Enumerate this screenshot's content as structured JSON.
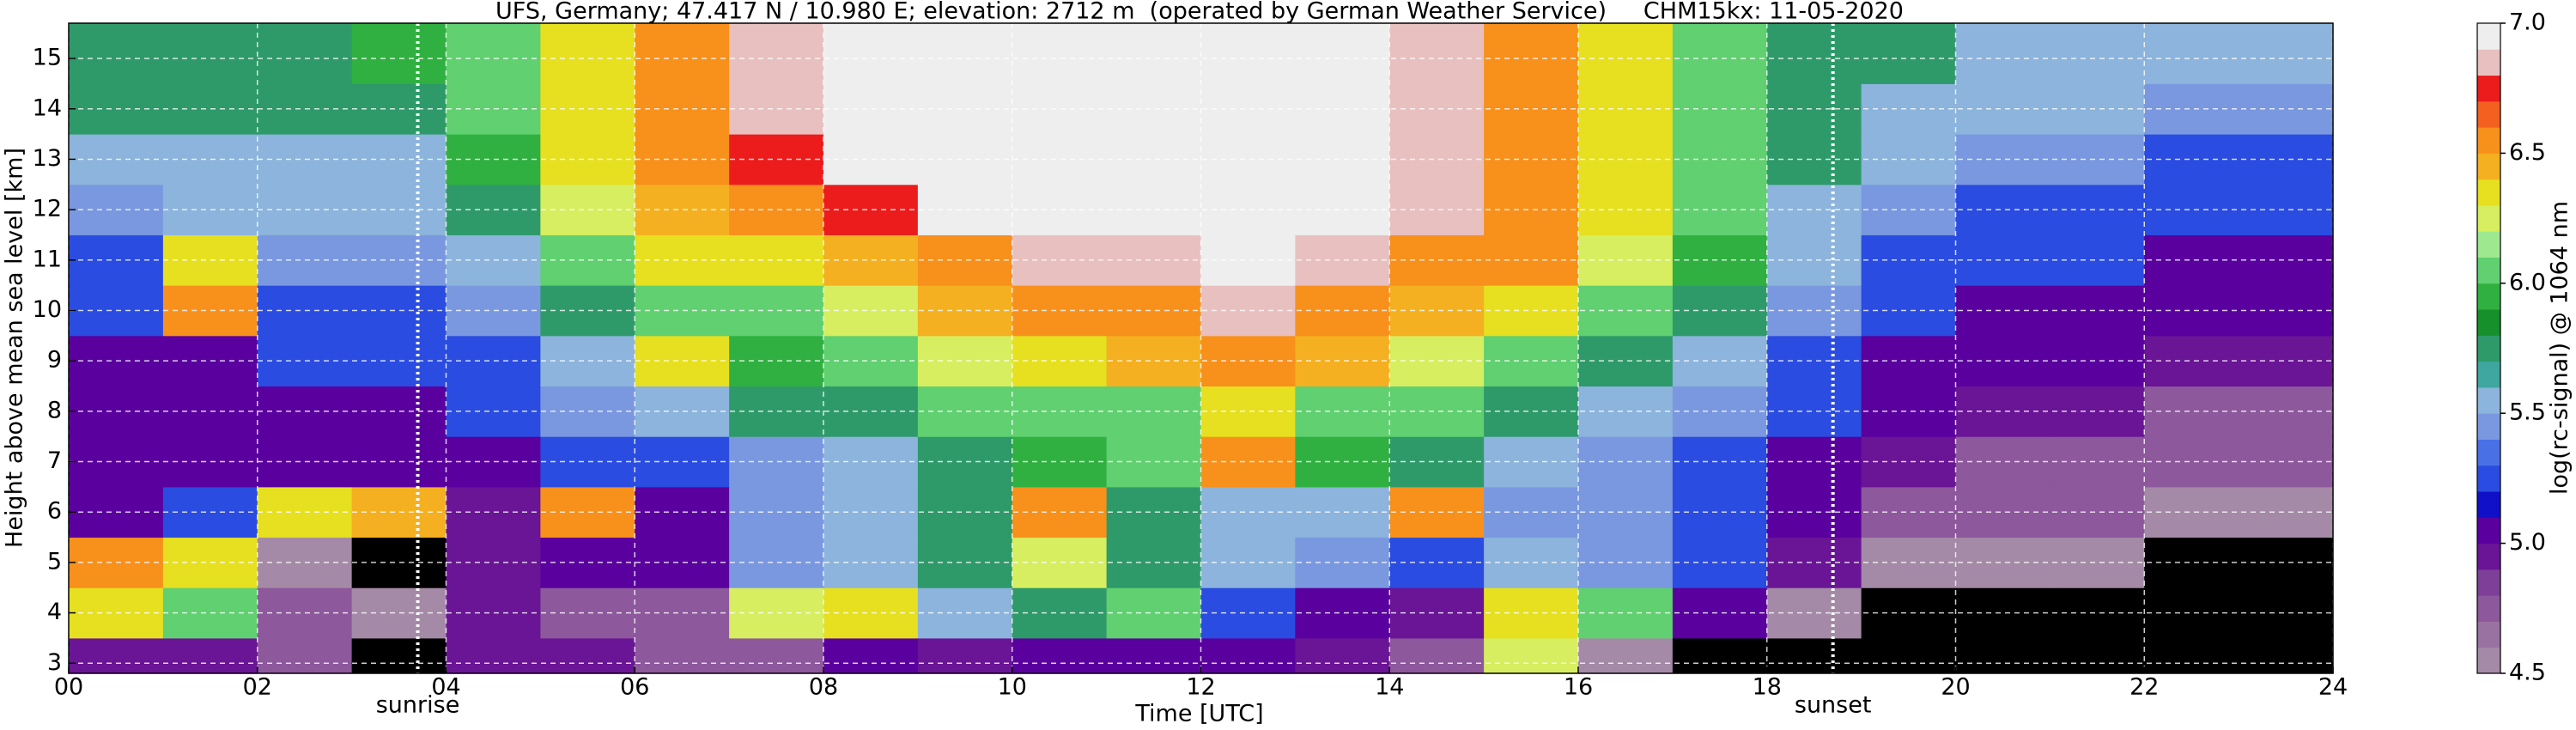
{
  "chart_data": {
    "type": "heatmap",
    "title": "UFS, Germany; 47.417 N / 10.980 E; elevation: 2712 m  (operated by German Weather Service)     CHM15kx: 11-05-2020",
    "x_label": "Time [UTC]",
    "y_label": "Height above mean sea level [km]",
    "colorbar_label": "log(rc-signal) @ 1064 nm",
    "xlim": [
      0,
      24
    ],
    "ylim": [
      2.8,
      15.7
    ],
    "xticks": [
      {
        "value": 0,
        "label": "00"
      },
      {
        "value": 2,
        "label": "02"
      },
      {
        "value": 4,
        "label": "04"
      },
      {
        "value": 6,
        "label": "06"
      },
      {
        "value": 8,
        "label": "08"
      },
      10,
      12,
      14,
      16,
      18,
      20,
      22,
      24
    ],
    "yticks": [
      3,
      4,
      5,
      6,
      7,
      8,
      9,
      10,
      11,
      12,
      13,
      14,
      15
    ],
    "grid": true,
    "annotations": [
      {
        "text": "sunrise",
        "x": 3.7
      },
      {
        "text": "sunset",
        "x": 18.7
      }
    ],
    "x_edges": [
      0,
      1,
      2,
      3,
      4,
      5,
      6,
      7,
      8,
      9,
      10,
      11,
      12,
      13,
      14,
      15,
      16,
      17,
      18,
      19,
      20,
      21,
      22,
      23,
      24
    ],
    "y_edges": [
      2.8,
      3.5,
      4.5,
      5.5,
      6.5,
      7.5,
      8.5,
      9.5,
      10.5,
      11.5,
      12.5,
      13.5,
      14.5,
      15.7
    ],
    "z": [
      [
        4.9,
        4.9,
        4.7,
        4.4,
        4.9,
        4.9,
        4.8,
        4.8,
        5.0,
        4.9,
        5.0,
        5.0,
        5.0,
        4.9,
        4.8,
        6.2,
        4.6,
        4.4,
        4.4,
        4.3,
        4.3,
        4.3,
        4.3,
        4.3
      ],
      [
        6.3,
        6.0,
        4.7,
        4.6,
        4.9,
        4.8,
        4.8,
        6.2,
        6.3,
        5.5,
        5.7,
        6.0,
        5.2,
        5.0,
        4.9,
        6.3,
        6.0,
        5.0,
        4.5,
        4.3,
        4.3,
        4.3,
        4.3,
        4.3
      ],
      [
        6.6,
        6.3,
        4.6,
        4.4,
        4.9,
        5.0,
        5.0,
        5.4,
        5.6,
        5.8,
        6.2,
        5.8,
        5.5,
        5.4,
        5.3,
        5.5,
        5.4,
        5.2,
        4.9,
        4.6,
        4.5,
        4.5,
        4.4,
        4.4
      ],
      [
        5.0,
        5.2,
        6.3,
        6.4,
        4.9,
        6.5,
        5.1,
        5.4,
        5.5,
        5.7,
        6.5,
        5.8,
        5.6,
        5.5,
        6.6,
        5.4,
        5.4,
        5.2,
        5.0,
        4.8,
        4.7,
        4.7,
        4.6,
        4.6
      ],
      [
        5.0,
        5.0,
        5.1,
        5.0,
        5.1,
        5.2,
        5.3,
        5.4,
        5.6,
        5.8,
        5.9,
        6.0,
        6.6,
        5.9,
        5.7,
        5.5,
        5.4,
        5.3,
        5.1,
        4.9,
        4.8,
        4.8,
        4.7,
        4.7
      ],
      [
        5.0,
        5.0,
        5.1,
        5.1,
        5.2,
        5.4,
        5.5,
        5.7,
        5.8,
        6.0,
        6.1,
        6.1,
        6.3,
        6.1,
        6.0,
        5.8,
        5.6,
        5.4,
        5.2,
        5.0,
        4.9,
        4.9,
        4.8,
        4.8
      ],
      [
        5.1,
        5.1,
        5.2,
        5.2,
        5.3,
        5.6,
        6.3,
        5.9,
        6.0,
        6.2,
        6.3,
        6.4,
        6.5,
        6.4,
        6.2,
        6.1,
        5.8,
        5.6,
        5.3,
        5.1,
        5.0,
        5.0,
        4.9,
        4.9
      ],
      [
        5.2,
        6.5,
        5.3,
        5.3,
        5.4,
        5.8,
        6.1,
        6.1,
        6.2,
        6.4,
        6.5,
        6.6,
        6.8,
        6.6,
        6.4,
        6.3,
        6.0,
        5.8,
        5.4,
        5.2,
        5.1,
        5.1,
        5.0,
        5.0
      ],
      [
        5.3,
        6.3,
        5.4,
        5.4,
        5.6,
        6.0,
        6.3,
        6.3,
        6.4,
        6.6,
        6.8,
        6.8,
        6.9,
        6.8,
        6.6,
        6.5,
        6.2,
        5.9,
        5.5,
        5.3,
        5.2,
        5.2,
        5.1,
        5.1
      ],
      [
        5.4,
        5.5,
        5.5,
        5.5,
        5.7,
        6.2,
        6.4,
        6.5,
        6.7,
        6.9,
        6.9,
        6.9,
        6.9,
        6.9,
        6.8,
        6.6,
        6.3,
        6.0,
        5.6,
        5.4,
        5.3,
        5.3,
        5.2,
        5.2
      ],
      [
        5.5,
        5.6,
        5.6,
        5.6,
        5.9,
        6.3,
        6.5,
        6.7,
        6.9,
        6.95,
        6.95,
        6.95,
        6.95,
        6.9,
        6.8,
        6.6,
        6.3,
        6.0,
        5.7,
        5.5,
        5.4,
        5.4,
        5.3,
        5.3
      ],
      [
        5.7,
        5.7,
        5.7,
        5.7,
        6.0,
        6.3,
        6.6,
        6.8,
        6.9,
        6.95,
        6.95,
        6.95,
        6.95,
        6.9,
        6.8,
        6.6,
        6.3,
        6.0,
        5.8,
        5.6,
        5.5,
        5.5,
        5.4,
        5.4
      ],
      [
        5.8,
        5.8,
        5.8,
        5.9,
        6.0,
        6.3,
        6.6,
        6.8,
        6.9,
        6.95,
        6.95,
        6.95,
        6.95,
        6.9,
        6.8,
        6.6,
        6.3,
        6.0,
        5.8,
        5.7,
        5.6,
        5.6,
        5.5,
        5.5
      ]
    ],
    "clim": [
      4.5,
      7.0
    ],
    "under_color": "#000000",
    "colors": [
      "#a48aa6",
      "#9a72a2",
      "#8d589c",
      "#7d3f98",
      "#6a1496",
      "#5a009e",
      "#1010c8",
      "#2a4ce0",
      "#4a70e6",
      "#7a98e0",
      "#8cb4dc",
      "#3fa6a0",
      "#2e9a6a",
      "#15902a",
      "#30b040",
      "#60d070",
      "#9ee890",
      "#d6ee60",
      "#e6e020",
      "#f4b020",
      "#f8901c",
      "#f46020",
      "#ec1c1c",
      "#e8c0c0",
      "#eeeeee"
    ],
    "cticks": [
      4.5,
      {
        "value": 5.0,
        "label": "5.0"
      },
      5.5,
      {
        "value": 6.0,
        "label": "6.0"
      },
      6.5,
      {
        "value": 7.0,
        "label": "7.0"
      }
    ]
  }
}
